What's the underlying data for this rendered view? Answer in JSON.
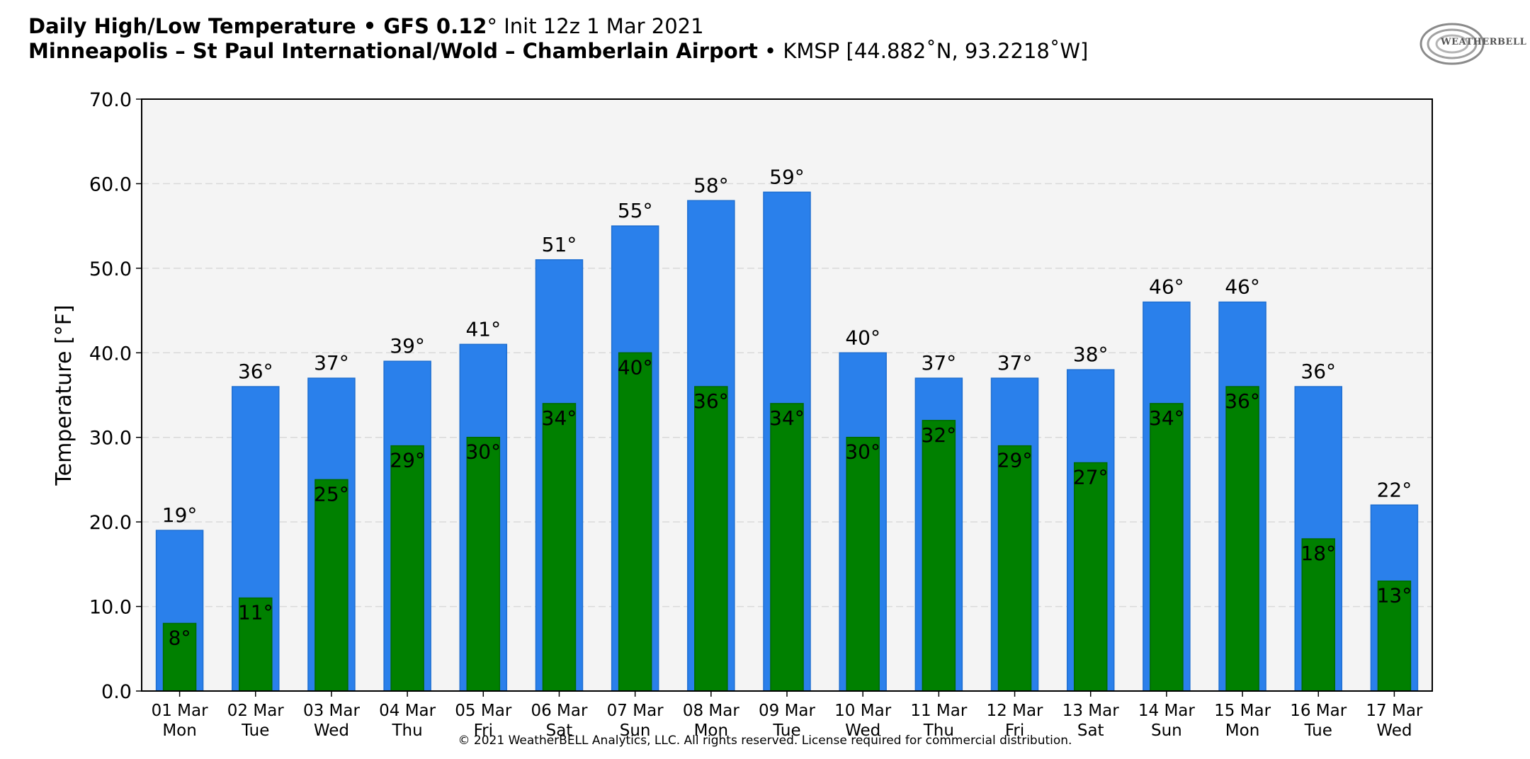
{
  "header": {
    "line1_bold": "Daily High/Low Temperature • GFS 0.12",
    "line1_deg": "°",
    "line1_rest": " Init 12z 1 Mar 2021",
    "line2_bold": "Minneapolis – St Paul International/Wold – Chamberlain Airport",
    "line2_rest": " • KMSP [44.882˚N, 93.2218˚W]"
  },
  "logo": {
    "text": "WEATHERBELL"
  },
  "footer": {
    "copyright": "© 2021 WeatherBELL Analytics, LLC. All rights reserved. License required for commercial distribution."
  },
  "colors": {
    "high": "#2a80eb",
    "low": "#008000",
    "plot_bg": "#f4f4f4",
    "grid": "#d9d9d9"
  },
  "chart_data": {
    "type": "bar",
    "title": "Daily High/Low Temperature • GFS 0.12° Init 12z 1 Mar 2021",
    "xlabel": "",
    "ylabel": "Temperature [°F]",
    "ylim": [
      0,
      70
    ],
    "yticks": [
      "0.0",
      "10.0",
      "20.0",
      "30.0",
      "40.0",
      "50.0",
      "60.0",
      "70.0"
    ],
    "grid": true,
    "categories": [
      [
        "01 Mar",
        "Mon"
      ],
      [
        "02 Mar",
        "Tue"
      ],
      [
        "03 Mar",
        "Wed"
      ],
      [
        "04 Mar",
        "Thu"
      ],
      [
        "05 Mar",
        "Fri"
      ],
      [
        "06 Mar",
        "Sat"
      ],
      [
        "07 Mar",
        "Sun"
      ],
      [
        "08 Mar",
        "Mon"
      ],
      [
        "09 Mar",
        "Tue"
      ],
      [
        "10 Mar",
        "Wed"
      ],
      [
        "11 Mar",
        "Thu"
      ],
      [
        "12 Mar",
        "Fri"
      ],
      [
        "13 Mar",
        "Sat"
      ],
      [
        "14 Mar",
        "Sun"
      ],
      [
        "15 Mar",
        "Mon"
      ],
      [
        "16 Mar",
        "Tue"
      ],
      [
        "17 Mar",
        "Wed"
      ]
    ],
    "series": [
      {
        "values": [
          19,
          36,
          37,
          39,
          41,
          51,
          55,
          58,
          59,
          40,
          37,
          37,
          38,
          46,
          46,
          36,
          22
        ],
        "labels": [
          "19°",
          "36°",
          "37°",
          "39°",
          "41°",
          "51°",
          "55°",
          "58°",
          "59°",
          "40°",
          "37°",
          "37°",
          "38°",
          "46°",
          "46°",
          "36°",
          "22°"
        ]
      },
      {
        "values": [
          8,
          11,
          25,
          29,
          30,
          34,
          40,
          36,
          34,
          30,
          32,
          29,
          27,
          34,
          36,
          18,
          13
        ],
        "labels": [
          "8°",
          "11°",
          "25°",
          "29°",
          "30°",
          "34°",
          "40°",
          "36°",
          "34°",
          "30°",
          "32°",
          "29°",
          "27°",
          "34°",
          "36°",
          "18°",
          "13°"
        ]
      }
    ]
  }
}
